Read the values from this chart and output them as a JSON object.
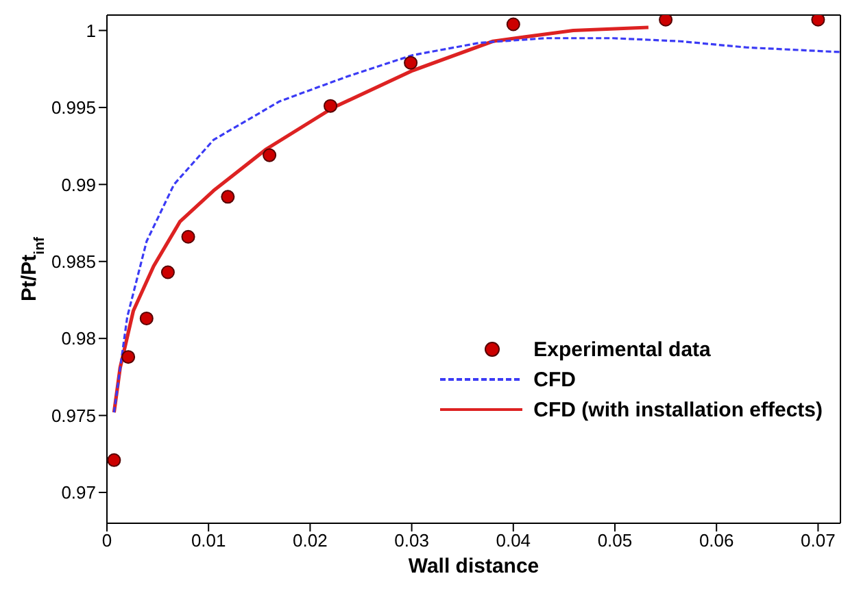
{
  "chart_data": {
    "type": "line",
    "xlabel": "Wall distance",
    "ylabel": "Pt/Pt$_{inf}$",
    "xlim": [
      0,
      0.0722
    ],
    "xticks": [
      0,
      0.01,
      0.02,
      0.03,
      0.04,
      0.05,
      0.06,
      0.07
    ],
    "ylim": [
      0.968,
      1.001
    ],
    "yticks": [
      0.97,
      0.975,
      0.98,
      0.985,
      0.99,
      0.995,
      1
    ],
    "legend": "right",
    "series": [
      {
        "name": "Experimental data",
        "type": "scatter",
        "marker": "circle",
        "color": "#cc0000",
        "x": [
          0.0007,
          0.0021,
          0.0039,
          0.006,
          0.008,
          0.0119,
          0.016,
          0.022,
          0.0299,
          0.04,
          0.055,
          0.07
        ],
        "values": [
          0.9721,
          0.9788,
          0.9813,
          0.9843,
          0.9866,
          0.9892,
          0.9919,
          0.9951,
          0.9979,
          1.0004,
          1.0007,
          1.0007
        ]
      },
      {
        "name": "CFD",
        "line_style": "dashed",
        "color": "#3b3bf5",
        "x": [
          0.0007,
          0.002,
          0.0039,
          0.0066,
          0.0105,
          0.017,
          0.0236,
          0.0301,
          0.0367,
          0.0432,
          0.0498,
          0.0564,
          0.0629,
          0.0721
        ],
        "values": [
          0.9752,
          0.9814,
          0.9863,
          0.99,
          0.9929,
          0.9954,
          0.997,
          0.9984,
          0.9992,
          0.9995,
          0.9995,
          0.9993,
          0.9989,
          0.9986
        ]
      },
      {
        "name": "CFD (with installation effects)",
        "line_style": "solid",
        "color": "#dd2222",
        "x": [
          0.0007,
          0.0013,
          0.0026,
          0.0046,
          0.0072,
          0.0105,
          0.0157,
          0.0223,
          0.0301,
          0.038,
          0.0459,
          0.0533
        ],
        "values": [
          0.9752,
          0.9781,
          0.9818,
          0.9847,
          0.9876,
          0.9896,
          0.9923,
          0.995,
          0.9974,
          0.9993,
          1.0,
          1.0002
        ]
      }
    ]
  }
}
